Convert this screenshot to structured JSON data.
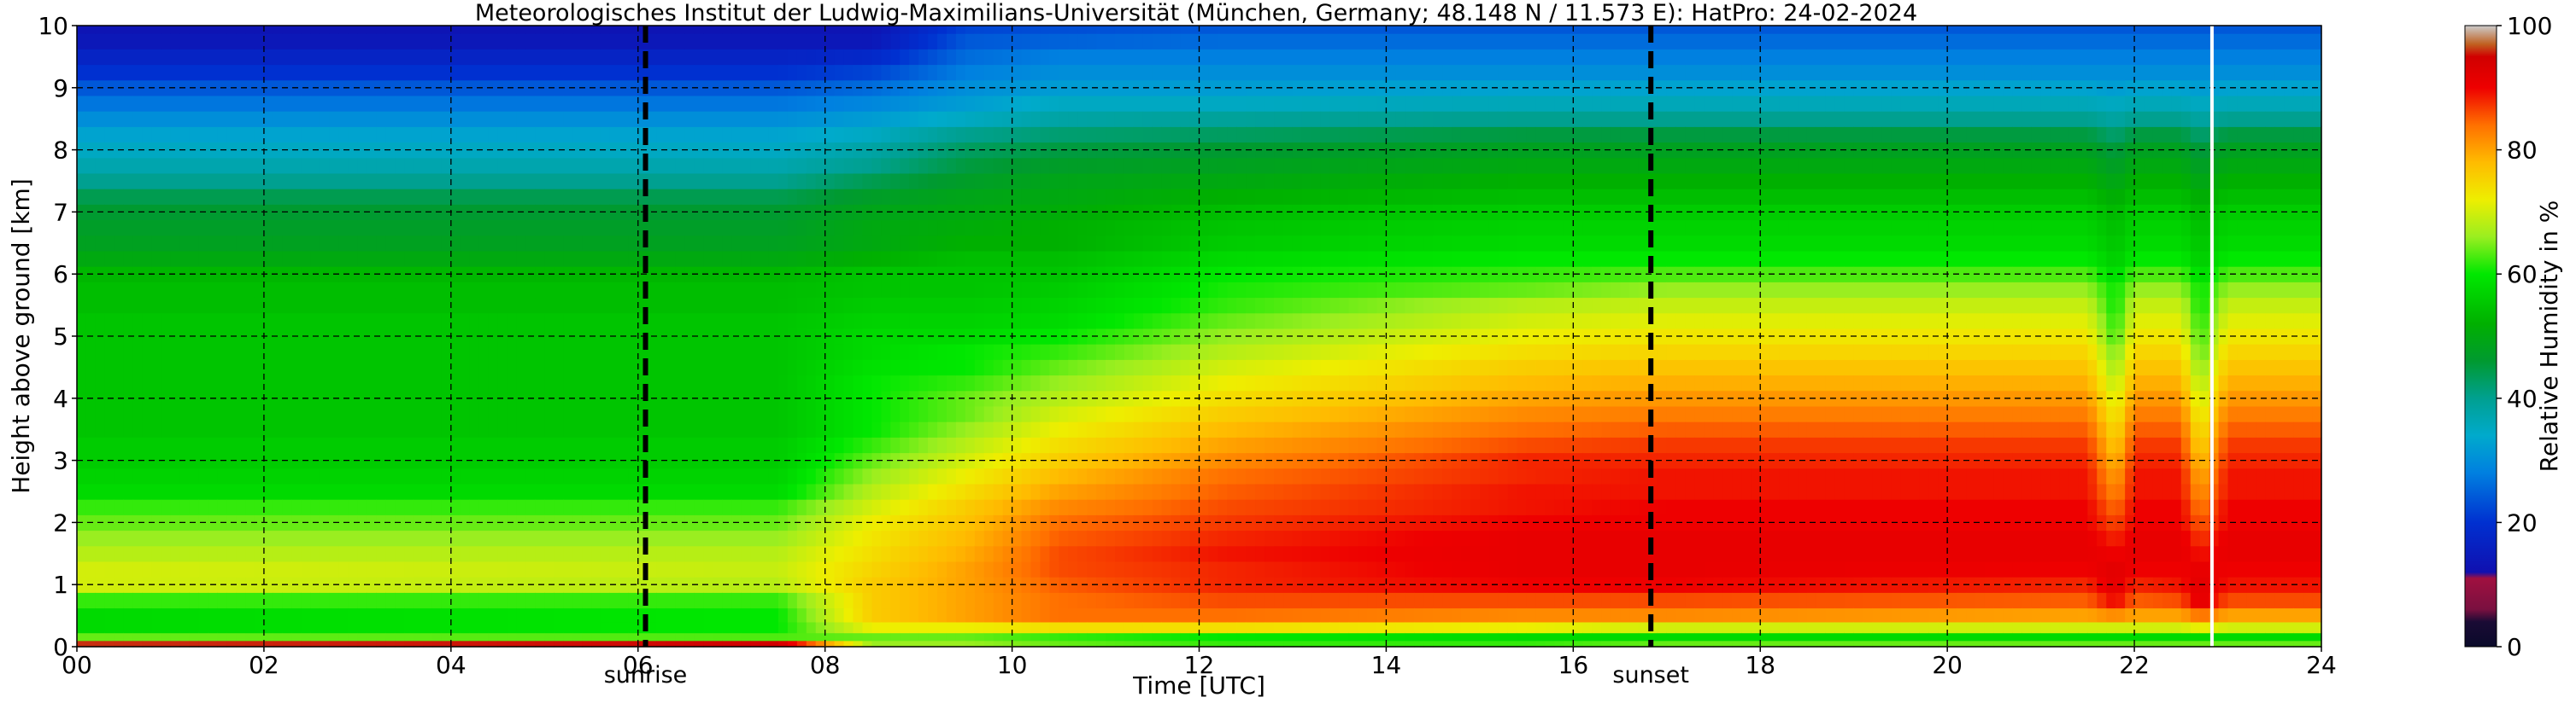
{
  "chart_data": {
    "type": "heatmap",
    "title": "Meteorologisches Institut der Ludwig-Maximilians-Universität (München, Germany; 48.148 N / 11.573 E):    HatPro: 24-02-2024",
    "xlabel": "Time [UTC]",
    "ylabel": "Height above ground [km]",
    "xlim": [
      0,
      24
    ],
    "ylim": [
      0,
      10
    ],
    "x_ticks": [
      "00",
      "02",
      "04",
      "06",
      "08",
      "10",
      "12",
      "14",
      "16",
      "18",
      "20",
      "22",
      "24"
    ],
    "x_tick_values": [
      0,
      2,
      4,
      6,
      8,
      10,
      12,
      14,
      16,
      18,
      20,
      22,
      24
    ],
    "y_ticks": [
      "0",
      "1",
      "2",
      "3",
      "4",
      "5",
      "6",
      "7",
      "8",
      "9",
      "10"
    ],
    "y_tick_values": [
      0,
      1,
      2,
      3,
      4,
      5,
      6,
      7,
      8,
      9,
      10
    ],
    "grid": true,
    "colorbar": {
      "label": "Relative Humidity in %",
      "range": [
        0,
        100
      ],
      "ticks": [
        "0",
        "20",
        "40",
        "60",
        "80",
        "100"
      ],
      "tick_values": [
        0,
        20,
        40,
        60,
        80,
        100
      ],
      "stops": [
        {
          "v": 0,
          "c": "#0a0a2a"
        },
        {
          "v": 4,
          "c": "#1a0b35"
        },
        {
          "v": 6,
          "c": "#7a1040"
        },
        {
          "v": 11,
          "c": "#a01040"
        },
        {
          "v": 12,
          "c": "#1010b0"
        },
        {
          "v": 20,
          "c": "#0030d0"
        },
        {
          "v": 28,
          "c": "#0080e0"
        },
        {
          "v": 34,
          "c": "#00aacc"
        },
        {
          "v": 40,
          "c": "#00a090"
        },
        {
          "v": 46,
          "c": "#009a30"
        },
        {
          "v": 52,
          "c": "#00b000"
        },
        {
          "v": 60,
          "c": "#00e800"
        },
        {
          "v": 66,
          "c": "#9aee20"
        },
        {
          "v": 72,
          "c": "#eeee00"
        },
        {
          "v": 78,
          "c": "#ffbb00"
        },
        {
          "v": 84,
          "c": "#ff7000"
        },
        {
          "v": 90,
          "c": "#ee0000"
        },
        {
          "v": 95,
          "c": "#d00000"
        },
        {
          "v": 97,
          "c": "#c06020"
        },
        {
          "v": 100,
          "c": "#cccccc"
        }
      ]
    },
    "annotations": [
      {
        "label": "sunrise",
        "x": 6.08
      },
      {
        "label": "sunset",
        "x": 16.83
      }
    ],
    "data_end_x": 22.83,
    "heights_km": [
      0.05,
      0.15,
      0.3,
      0.5,
      0.75,
      1.0,
      1.25,
      1.5,
      1.75,
      2.0,
      2.25,
      2.5,
      2.75,
      3.0,
      3.25,
      3.5,
      3.75,
      4.0,
      4.25,
      4.5,
      4.75,
      5.0,
      5.25,
      5.5,
      5.75,
      6.0,
      6.25,
      6.5,
      6.75,
      7.0,
      7.25,
      7.5,
      7.75,
      8.0,
      8.25,
      8.5,
      8.75,
      9.0,
      9.25,
      9.5,
      9.75,
      10.0
    ],
    "time_keys": [
      0,
      7.5,
      8.5,
      9.5,
      10.5,
      12.3,
      15.5,
      17,
      21.5,
      21.8,
      22.0,
      22.5,
      22.7,
      23.0,
      24
    ],
    "rh_profiles": [
      [
        96,
        64,
        58,
        58,
        62,
        70,
        70,
        68,
        66,
        64,
        62,
        58,
        57,
        56,
        56,
        55,
        55,
        55,
        55,
        55,
        55,
        55,
        55,
        54,
        54,
        53,
        50,
        48,
        47,
        46,
        44,
        40,
        37,
        35,
        33,
        30,
        27,
        24,
        20,
        17,
        14,
        13
      ],
      [
        95,
        63,
        60,
        60,
        62,
        68,
        69,
        68,
        66,
        64,
        62,
        58,
        57,
        56,
        56,
        55,
        55,
        55,
        55,
        55,
        55,
        55,
        55,
        54,
        54,
        53,
        50,
        48,
        47,
        46,
        44,
        40,
        37,
        35,
        33,
        30,
        27,
        24,
        20,
        17,
        14,
        13
      ],
      [
        66,
        64,
        72,
        76,
        76,
        76,
        75,
        74,
        73,
        72,
        70,
        68,
        66,
        64,
        62,
        60,
        60,
        60,
        60,
        59,
        58,
        58,
        57,
        56,
        55,
        55,
        52,
        50,
        50,
        49,
        47,
        44,
        40,
        38,
        35,
        32,
        29,
        26,
        22,
        18,
        14,
        13
      ],
      [
        66,
        64,
        72,
        80,
        80,
        80,
        80,
        79,
        78,
        77,
        76,
        74,
        72,
        70,
        68,
        66,
        64,
        64,
        62,
        60,
        60,
        58,
        57,
        56,
        55,
        55,
        54,
        52,
        51,
        50,
        49,
        47,
        45,
        43,
        40,
        35,
        32,
        30,
        28,
        26,
        24,
        22
      ],
      [
        64,
        62,
        74,
        84,
        84,
        85,
        86,
        86,
        85,
        84,
        82,
        80,
        78,
        76,
        74,
        72,
        70,
        68,
        66,
        64,
        62,
        60,
        58,
        57,
        56,
        55,
        54,
        52,
        52,
        51,
        50,
        49,
        47,
        45,
        42,
        38,
        35,
        32,
        30,
        28,
        25,
        23
      ],
      [
        62,
        60,
        74,
        84,
        86,
        88,
        88,
        89,
        88,
        87,
        86,
        85,
        84,
        82,
        80,
        78,
        76,
        74,
        72,
        70,
        68,
        66,
        64,
        62,
        61,
        60,
        58,
        56,
        55,
        54,
        52,
        50,
        48,
        46,
        43,
        39,
        35,
        32,
        30,
        28,
        26,
        24
      ],
      [
        62,
        58,
        72,
        82,
        86,
        90,
        91,
        91,
        91,
        90,
        89,
        89,
        88,
        88,
        86,
        84,
        82,
        80,
        78,
        76,
        74,
        72,
        70,
        68,
        64,
        62,
        60,
        58,
        57,
        56,
        54,
        52,
        50,
        48,
        45,
        40,
        36,
        33,
        30,
        28,
        26,
        24
      ],
      [
        64,
        58,
        70,
        82,
        86,
        90,
        91,
        91,
        91,
        90,
        90,
        89,
        89,
        88,
        87,
        85,
        83,
        81,
        79,
        77,
        75,
        73,
        71,
        69,
        66,
        63,
        60,
        58,
        57,
        56,
        54,
        52,
        50,
        48,
        45,
        40,
        36,
        33,
        30,
        28,
        26,
        24
      ],
      [
        64,
        58,
        70,
        80,
        85,
        88,
        90,
        91,
        91,
        90,
        90,
        89,
        89,
        88,
        87,
        85,
        83,
        81,
        79,
        77,
        75,
        73,
        71,
        69,
        66,
        63,
        60,
        58,
        57,
        56,
        54,
        52,
        50,
        48,
        45,
        40,
        36,
        33,
        30,
        28,
        26,
        24
      ],
      [
        64,
        58,
        70,
        82,
        90,
        92,
        92,
        90,
        88,
        86,
        84,
        82,
        80,
        78,
        76,
        74,
        72,
        70,
        68,
        66,
        64,
        62,
        61,
        60,
        60,
        58,
        56,
        55,
        54,
        53,
        51,
        49,
        47,
        45,
        42,
        38,
        35,
        32,
        30,
        28,
        26,
        24
      ],
      [
        64,
        58,
        70,
        80,
        85,
        88,
        90,
        91,
        91,
        90,
        90,
        89,
        89,
        88,
        87,
        85,
        83,
        81,
        79,
        77,
        75,
        73,
        71,
        69,
        66,
        63,
        60,
        58,
        57,
        56,
        54,
        52,
        50,
        48,
        45,
        40,
        36,
        33,
        30,
        28,
        26,
        24
      ],
      [
        64,
        58,
        70,
        80,
        86,
        89,
        90,
        91,
        91,
        90,
        90,
        89,
        89,
        88,
        87,
        85,
        83,
        81,
        79,
        77,
        75,
        73,
        71,
        69,
        66,
        63,
        60,
        58,
        57,
        56,
        54,
        52,
        50,
        48,
        45,
        40,
        36,
        33,
        30,
        28,
        26,
        24
      ],
      [
        64,
        58,
        72,
        84,
        92,
        92,
        91,
        89,
        87,
        85,
        83,
        81,
        79,
        77,
        75,
        73,
        71,
        69,
        67,
        65,
        63,
        62,
        61,
        60,
        60,
        58,
        56,
        55,
        54,
        53,
        51,
        49,
        47,
        45,
        42,
        38,
        35,
        32,
        30,
        28,
        26,
        24
      ],
      [
        64,
        58,
        70,
        80,
        86,
        89,
        90,
        91,
        91,
        90,
        90,
        89,
        89,
        88,
        87,
        85,
        83,
        81,
        79,
        77,
        75,
        73,
        71,
        69,
        66,
        63,
        60,
        58,
        57,
        56,
        54,
        52,
        50,
        48,
        45,
        40,
        36,
        33,
        30,
        28,
        26,
        24
      ],
      [
        64,
        58,
        70,
        80,
        86,
        89,
        90,
        91,
        91,
        90,
        90,
        89,
        89,
        88,
        87,
        85,
        83,
        81,
        79,
        77,
        75,
        73,
        71,
        69,
        66,
        63,
        60,
        58,
        57,
        56,
        54,
        52,
        50,
        48,
        45,
        40,
        36,
        33,
        30,
        28,
        26,
        24
      ]
    ]
  }
}
